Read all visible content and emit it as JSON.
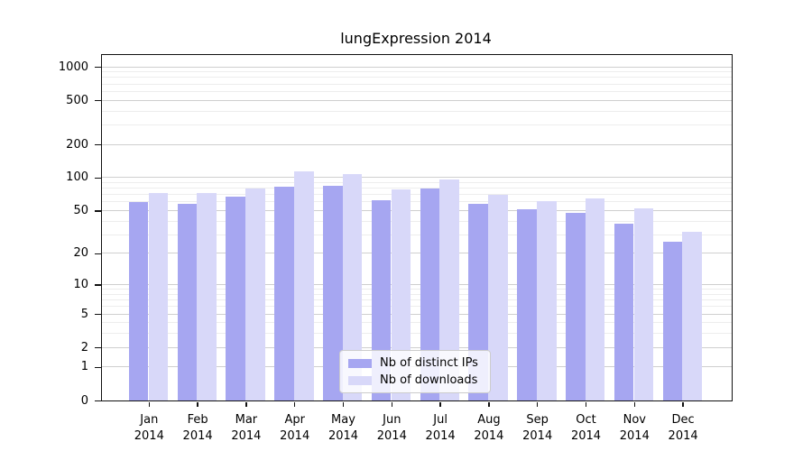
{
  "chart_data": {
    "type": "bar",
    "title": "lungExpression 2014",
    "categories": [
      "Jan 2014",
      "Feb 2014",
      "Mar 2014",
      "Apr 2014",
      "May 2014",
      "Jun 2014",
      "Jul 2014",
      "Aug 2014",
      "Sep 2014",
      "Oct 2014",
      "Nov 2014",
      "Dec 2014"
    ],
    "series": [
      {
        "name": "Nb of distinct IPs",
        "color": "#a6a6f1",
        "values": [
          60,
          58,
          67,
          83,
          84,
          62,
          80,
          58,
          51,
          48,
          38,
          26
        ]
      },
      {
        "name": "Nb of downloads",
        "color": "#d8d8f9",
        "values": [
          73,
          73,
          79,
          115,
          108,
          78,
          96,
          70,
          61,
          65,
          52,
          32
        ]
      }
    ],
    "yscale": "log1p",
    "y_ticks": [
      0,
      1,
      2,
      5,
      10,
      20,
      50,
      100,
      200,
      500,
      1000
    ],
    "ylim": [
      0,
      1273
    ],
    "xlabel": "",
    "ylabel": "",
    "grid": true,
    "legend_position": "lower center",
    "colors": {
      "bar_distinct_ips": "#a6a6f1",
      "bar_downloads": "#d8d8f9",
      "grid_major": "#cfcfcf",
      "grid_minor": "#ededed",
      "axis": "#111111"
    }
  }
}
